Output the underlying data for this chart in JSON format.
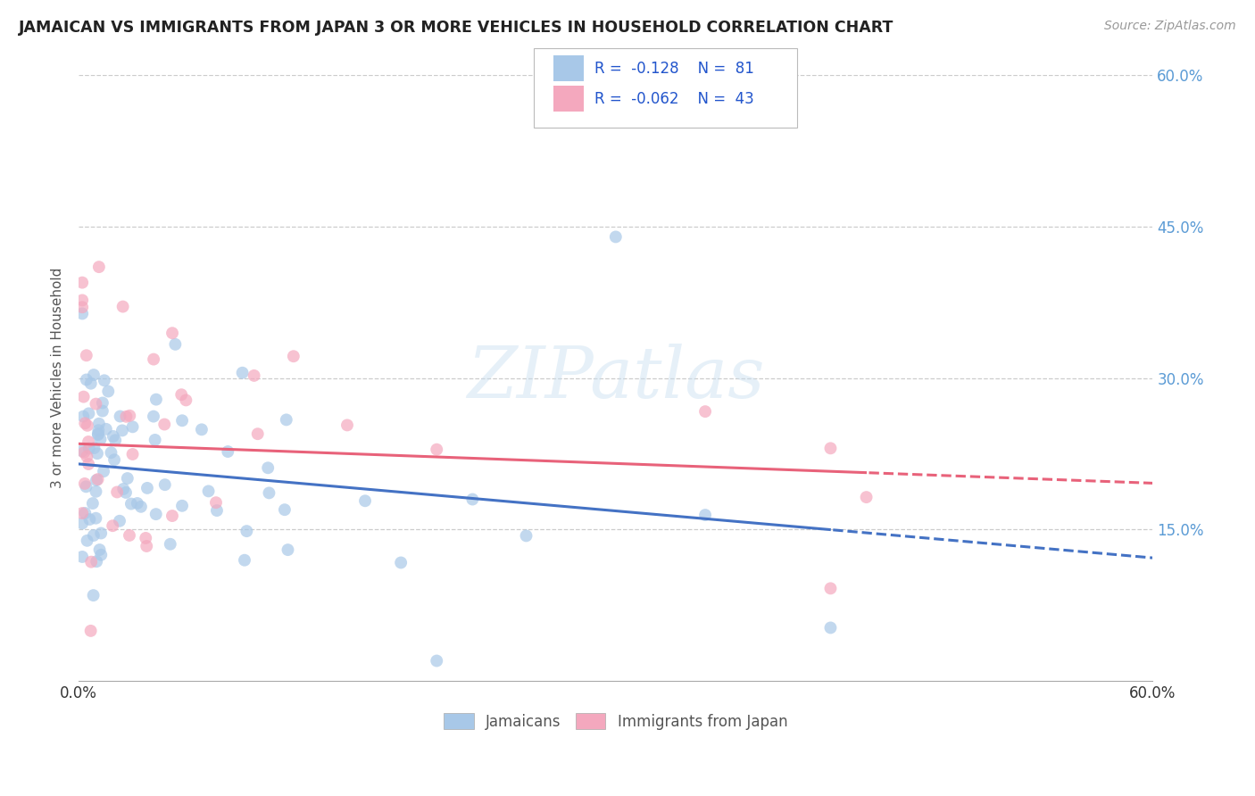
{
  "title": "JAMAICAN VS IMMIGRANTS FROM JAPAN 3 OR MORE VEHICLES IN HOUSEHOLD CORRELATION CHART",
  "source": "Source: ZipAtlas.com",
  "ylabel": "3 or more Vehicles in Household",
  "xlim": [
    0.0,
    0.6
  ],
  "ylim": [
    0.0,
    0.6
  ],
  "r_jamaican": -0.128,
  "n_jamaican": 81,
  "r_japan": -0.062,
  "n_japan": 43,
  "color_jamaican": "#a8c8e8",
  "color_japan": "#f4a8be",
  "line_color_jamaican": "#4472c4",
  "line_color_japan": "#e8627a",
  "watermark": "ZIPatlas",
  "legend_label_jamaican": "Jamaicans",
  "legend_label_japan": "Immigrants from Japan",
  "grid_color": "#cccccc",
  "grid_yticks": [
    0.15,
    0.3,
    0.45,
    0.6
  ]
}
